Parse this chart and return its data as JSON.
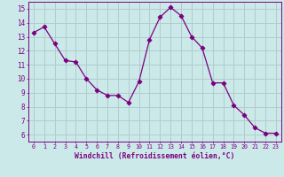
{
  "x": [
    0,
    1,
    2,
    3,
    4,
    5,
    6,
    7,
    8,
    9,
    10,
    11,
    12,
    13,
    14,
    15,
    16,
    17,
    18,
    19,
    20,
    21,
    22,
    23
  ],
  "y": [
    13.3,
    13.7,
    12.5,
    11.3,
    11.2,
    10.0,
    9.2,
    8.8,
    8.8,
    8.3,
    9.8,
    12.8,
    14.4,
    15.1,
    14.5,
    13.0,
    12.2,
    9.7,
    9.7,
    8.1,
    7.4,
    6.5,
    6.1,
    6.1
  ],
  "line_color": "#7b0080",
  "marker": "D",
  "marker_size": 2.5,
  "bg_color": "#cce9e9",
  "grid_color": "#b0cccc",
  "xlabel": "Windchill (Refroidissement éolien,°C)",
  "ylabel_ticks": [
    6,
    7,
    8,
    9,
    10,
    11,
    12,
    13,
    14,
    15
  ],
  "xlim": [
    -0.5,
    23.5
  ],
  "ylim": [
    5.5,
    15.5
  ],
  "tick_color": "#7b0080",
  "label_color": "#7b0080"
}
